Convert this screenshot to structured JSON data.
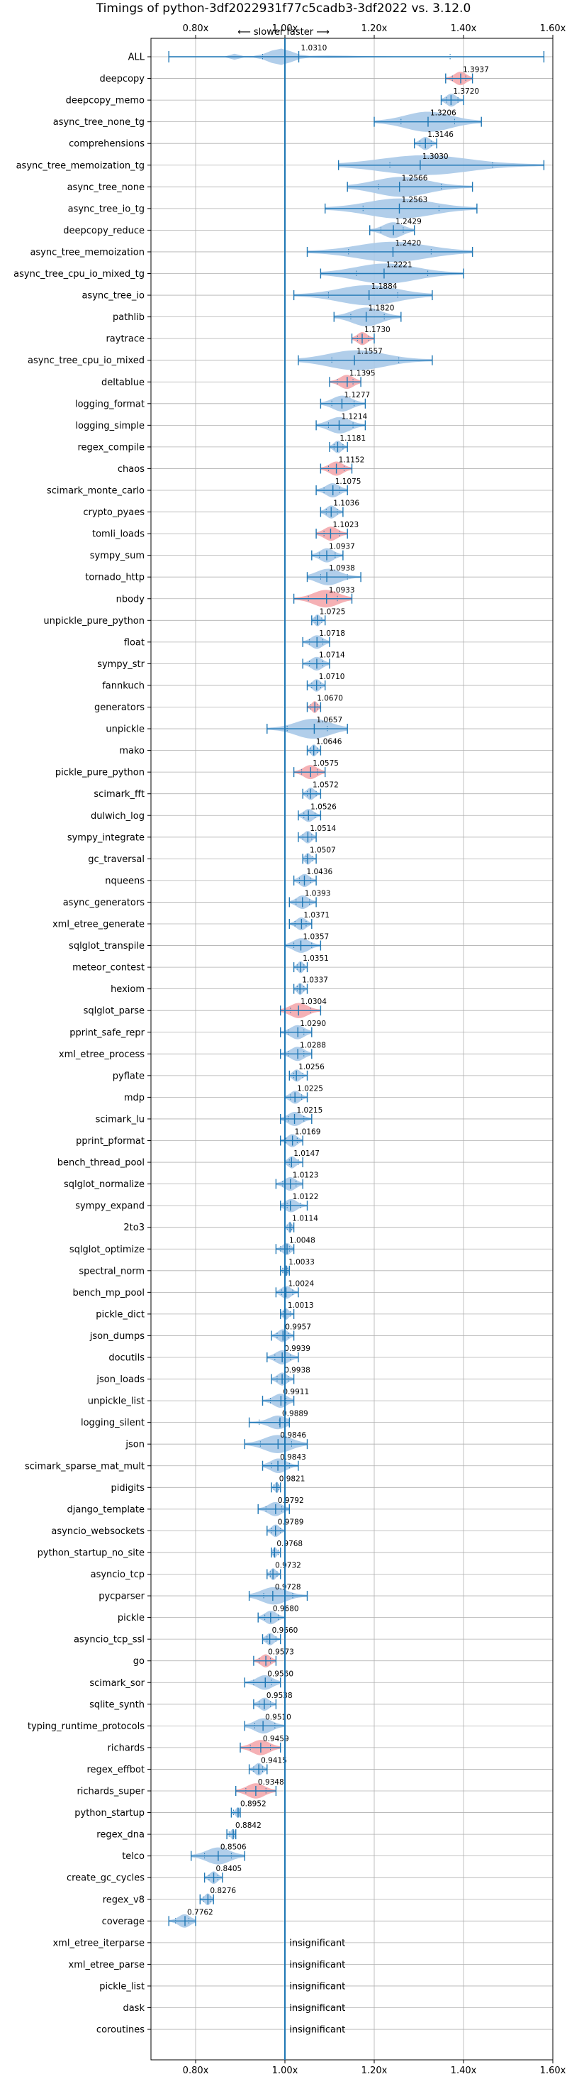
{
  "chart_data": {
    "type": "violin",
    "title": "Timings of python-3df2022931f77c5cadb3-3df2022 vs. 3.12.0",
    "direction_label": "⟵ slower    faster ⟶",
    "xlim": [
      0.7,
      1.6
    ],
    "x_ticks": [
      {
        "value": 0.8,
        "label": "0.80x"
      },
      {
        "value": 1.0,
        "label": "1.00x"
      },
      {
        "value": 1.2,
        "label": "1.20x"
      },
      {
        "value": 1.4,
        "label": "1.40x"
      },
      {
        "value": 1.6,
        "label": "1.60x"
      }
    ],
    "reference_line": 1.0,
    "colors": {
      "normal": "#a9c9e8",
      "highlight": "#f4a9ad",
      "line": "#1f77b4",
      "grid": "#b0b0b0"
    },
    "insignificant_label": "insignificant",
    "benchmarks": [
      {
        "name": "ALL",
        "value": 1.031,
        "min": 0.74,
        "max": 1.58,
        "shape": "all"
      },
      {
        "name": "deepcopy",
        "value": 1.3937,
        "min": 1.36,
        "max": 1.42,
        "highlight": true
      },
      {
        "name": "deepcopy_memo",
        "value": 1.372,
        "min": 1.35,
        "max": 1.4
      },
      {
        "name": "async_tree_none_tg",
        "value": 1.3206,
        "min": 1.2,
        "max": 1.44
      },
      {
        "name": "comprehensions",
        "value": 1.3146,
        "min": 1.29,
        "max": 1.34
      },
      {
        "name": "async_tree_memoization_tg",
        "value": 1.303,
        "min": 1.12,
        "max": 1.58
      },
      {
        "name": "async_tree_none",
        "value": 1.2566,
        "min": 1.14,
        "max": 1.42
      },
      {
        "name": "async_tree_io_tg",
        "value": 1.2563,
        "min": 1.09,
        "max": 1.43
      },
      {
        "name": "deepcopy_reduce",
        "value": 1.2429,
        "min": 1.19,
        "max": 1.29
      },
      {
        "name": "async_tree_memoization",
        "value": 1.242,
        "min": 1.05,
        "max": 1.42
      },
      {
        "name": "async_tree_cpu_io_mixed_tg",
        "value": 1.2221,
        "min": 1.08,
        "max": 1.4
      },
      {
        "name": "async_tree_io",
        "value": 1.1884,
        "min": 1.02,
        "max": 1.33
      },
      {
        "name": "pathlib",
        "value": 1.182,
        "min": 1.11,
        "max": 1.26
      },
      {
        "name": "raytrace",
        "value": 1.173,
        "min": 1.15,
        "max": 1.2,
        "highlight": true
      },
      {
        "name": "async_tree_cpu_io_mixed",
        "value": 1.1557,
        "min": 1.03,
        "max": 1.33
      },
      {
        "name": "deltablue",
        "value": 1.1395,
        "min": 1.1,
        "max": 1.17,
        "highlight": true
      },
      {
        "name": "logging_format",
        "value": 1.1277,
        "min": 1.08,
        "max": 1.18
      },
      {
        "name": "logging_simple",
        "value": 1.1214,
        "min": 1.07,
        "max": 1.18
      },
      {
        "name": "regex_compile",
        "value": 1.1181,
        "min": 1.1,
        "max": 1.14
      },
      {
        "name": "chaos",
        "value": 1.1152,
        "min": 1.08,
        "max": 1.15,
        "highlight": true
      },
      {
        "name": "scimark_monte_carlo",
        "value": 1.1075,
        "min": 1.07,
        "max": 1.14
      },
      {
        "name": "crypto_pyaes",
        "value": 1.1036,
        "min": 1.08,
        "max": 1.13
      },
      {
        "name": "tomli_loads",
        "value": 1.1023,
        "min": 1.07,
        "max": 1.14,
        "highlight": true
      },
      {
        "name": "sympy_sum",
        "value": 1.0937,
        "min": 1.06,
        "max": 1.13
      },
      {
        "name": "tornado_http",
        "value": 1.0938,
        "min": 1.05,
        "max": 1.17
      },
      {
        "name": "nbody",
        "value": 1.0933,
        "min": 1.02,
        "max": 1.15,
        "highlight": true
      },
      {
        "name": "unpickle_pure_python",
        "value": 1.0725,
        "min": 1.06,
        "max": 1.09
      },
      {
        "name": "float",
        "value": 1.0718,
        "min": 1.04,
        "max": 1.1
      },
      {
        "name": "sympy_str",
        "value": 1.0714,
        "min": 1.04,
        "max": 1.1
      },
      {
        "name": "fannkuch",
        "value": 1.071,
        "min": 1.05,
        "max": 1.09
      },
      {
        "name": "generators",
        "value": 1.067,
        "min": 1.05,
        "max": 1.08,
        "highlight": true
      },
      {
        "name": "unpickle",
        "value": 1.0657,
        "min": 0.96,
        "max": 1.14
      },
      {
        "name": "mako",
        "value": 1.0646,
        "min": 1.05,
        "max": 1.08
      },
      {
        "name": "pickle_pure_python",
        "value": 1.0575,
        "min": 1.02,
        "max": 1.09,
        "highlight": true
      },
      {
        "name": "scimark_fft",
        "value": 1.0572,
        "min": 1.04,
        "max": 1.08
      },
      {
        "name": "dulwich_log",
        "value": 1.0526,
        "min": 1.03,
        "max": 1.08
      },
      {
        "name": "sympy_integrate",
        "value": 1.0514,
        "min": 1.03,
        "max": 1.07
      },
      {
        "name": "gc_traversal",
        "value": 1.0507,
        "min": 1.04,
        "max": 1.07
      },
      {
        "name": "nqueens",
        "value": 1.0436,
        "min": 1.02,
        "max": 1.07
      },
      {
        "name": "async_generators",
        "value": 1.0393,
        "min": 1.01,
        "max": 1.07
      },
      {
        "name": "xml_etree_generate",
        "value": 1.0371,
        "min": 1.01,
        "max": 1.06
      },
      {
        "name": "sqlglot_transpile",
        "value": 1.0357,
        "min": 1.0,
        "max": 1.08
      },
      {
        "name": "meteor_contest",
        "value": 1.0351,
        "min": 1.02,
        "max": 1.05
      },
      {
        "name": "hexiom",
        "value": 1.0337,
        "min": 1.02,
        "max": 1.05
      },
      {
        "name": "sqlglot_parse",
        "value": 1.0304,
        "min": 0.99,
        "max": 1.08,
        "highlight": true
      },
      {
        "name": "pprint_safe_repr",
        "value": 1.029,
        "min": 0.99,
        "max": 1.06
      },
      {
        "name": "xml_etree_process",
        "value": 1.0288,
        "min": 0.99,
        "max": 1.06
      },
      {
        "name": "pyflate",
        "value": 1.0256,
        "min": 1.01,
        "max": 1.05
      },
      {
        "name": "mdp",
        "value": 1.0225,
        "min": 1.0,
        "max": 1.05
      },
      {
        "name": "scimark_lu",
        "value": 1.0215,
        "min": 0.99,
        "max": 1.06
      },
      {
        "name": "pprint_pformat",
        "value": 1.0169,
        "min": 0.99,
        "max": 1.04
      },
      {
        "name": "bench_thread_pool",
        "value": 1.0147,
        "min": 1.0,
        "max": 1.04
      },
      {
        "name": "sqlglot_normalize",
        "value": 1.0123,
        "min": 0.98,
        "max": 1.04
      },
      {
        "name": "sympy_expand",
        "value": 1.0122,
        "min": 0.99,
        "max": 1.05
      },
      {
        "name": "2to3",
        "value": 1.0114,
        "min": 1.0,
        "max": 1.02
      },
      {
        "name": "sqlglot_optimize",
        "value": 1.0048,
        "min": 0.98,
        "max": 1.02
      },
      {
        "name": "spectral_norm",
        "value": 1.0033,
        "min": 0.99,
        "max": 1.01
      },
      {
        "name": "bench_mp_pool",
        "value": 1.0024,
        "min": 0.98,
        "max": 1.03
      },
      {
        "name": "pickle_dict",
        "value": 1.0013,
        "min": 0.99,
        "max": 1.02
      },
      {
        "name": "json_dumps",
        "value": 0.9957,
        "min": 0.97,
        "max": 1.02
      },
      {
        "name": "docutils",
        "value": 0.9939,
        "min": 0.96,
        "max": 1.03
      },
      {
        "name": "json_loads",
        "value": 0.9938,
        "min": 0.97,
        "max": 1.02
      },
      {
        "name": "unpickle_list",
        "value": 0.9911,
        "min": 0.95,
        "max": 1.02
      },
      {
        "name": "logging_silent",
        "value": 0.9889,
        "min": 0.92,
        "max": 1.01
      },
      {
        "name": "json",
        "value": 0.9846,
        "min": 0.91,
        "max": 1.05
      },
      {
        "name": "scimark_sparse_mat_mult",
        "value": 0.9843,
        "min": 0.95,
        "max": 1.03
      },
      {
        "name": "pidigits",
        "value": 0.9821,
        "min": 0.97,
        "max": 0.99
      },
      {
        "name": "django_template",
        "value": 0.9792,
        "min": 0.94,
        "max": 1.01
      },
      {
        "name": "asyncio_websockets",
        "value": 0.9789,
        "min": 0.96,
        "max": 1.0
      },
      {
        "name": "python_startup_no_site",
        "value": 0.9768,
        "min": 0.97,
        "max": 0.99
      },
      {
        "name": "asyncio_tcp",
        "value": 0.9732,
        "min": 0.96,
        "max": 0.99
      },
      {
        "name": "pycparser",
        "value": 0.9728,
        "min": 0.92,
        "max": 1.05
      },
      {
        "name": "pickle",
        "value": 0.968,
        "min": 0.94,
        "max": 1.0
      },
      {
        "name": "asyncio_tcp_ssl",
        "value": 0.966,
        "min": 0.95,
        "max": 0.99
      },
      {
        "name": "go",
        "value": 0.9573,
        "min": 0.93,
        "max": 0.98,
        "highlight": true
      },
      {
        "name": "scimark_sor",
        "value": 0.956,
        "min": 0.91,
        "max": 0.99
      },
      {
        "name": "sqlite_synth",
        "value": 0.9538,
        "min": 0.93,
        "max": 0.98
      },
      {
        "name": "typing_runtime_protocols",
        "value": 0.951,
        "min": 0.91,
        "max": 1.0
      },
      {
        "name": "richards",
        "value": 0.9459,
        "min": 0.9,
        "max": 0.99,
        "highlight": true
      },
      {
        "name": "regex_effbot",
        "value": 0.9415,
        "min": 0.92,
        "max": 0.96
      },
      {
        "name": "richards_super",
        "value": 0.9348,
        "min": 0.89,
        "max": 0.98,
        "highlight": true
      },
      {
        "name": "python_startup",
        "value": 0.8952,
        "min": 0.88,
        "max": 0.9
      },
      {
        "name": "regex_dna",
        "value": 0.8842,
        "min": 0.87,
        "max": 0.89
      },
      {
        "name": "telco",
        "value": 0.8506,
        "min": 0.79,
        "max": 0.91
      },
      {
        "name": "create_gc_cycles",
        "value": 0.8405,
        "min": 0.82,
        "max": 0.86
      },
      {
        "name": "regex_v8",
        "value": 0.8276,
        "min": 0.81,
        "max": 0.84
      },
      {
        "name": "coverage",
        "value": 0.7762,
        "min": 0.74,
        "max": 0.8
      },
      {
        "name": "xml_etree_iterparse",
        "insignificant": true
      },
      {
        "name": "xml_etree_parse",
        "insignificant": true
      },
      {
        "name": "pickle_list",
        "insignificant": true
      },
      {
        "name": "dask",
        "insignificant": true
      },
      {
        "name": "coroutines",
        "insignificant": true
      }
    ]
  }
}
